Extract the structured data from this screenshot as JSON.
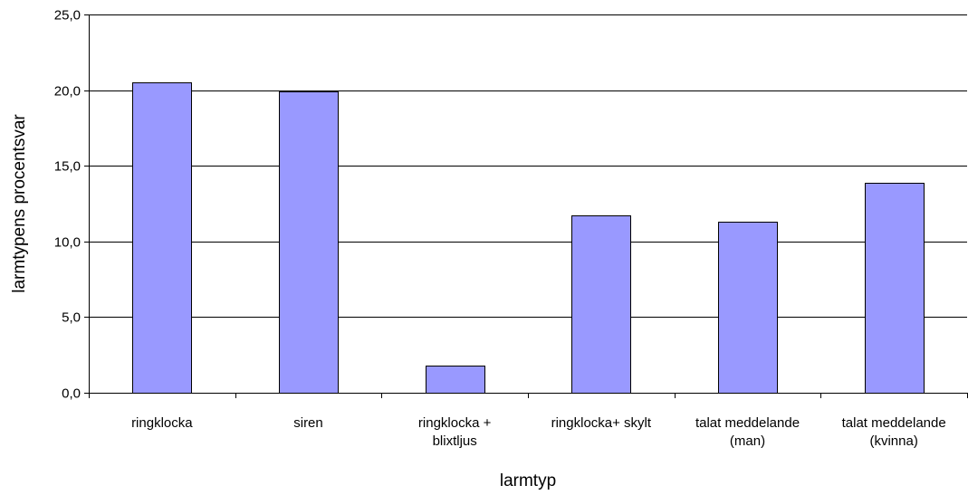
{
  "chart_data": {
    "type": "bar",
    "categories": [
      [
        "ringklocka"
      ],
      [
        "siren"
      ],
      [
        "ringklocka +",
        "blixtljus"
      ],
      [
        "ringklocka+ skylt"
      ],
      [
        "talat meddelande",
        "(man)"
      ],
      [
        "talat meddelande",
        "(kvinna)"
      ]
    ],
    "values": [
      20.5,
      19.9,
      1.8,
      11.7,
      11.3,
      13.9
    ],
    "xlabel": "larmtyp",
    "ylabel": "larmtypens procentsvar",
    "ylim": [
      0,
      25
    ],
    "yticks": [
      "0,0",
      "5,0",
      "10,0",
      "15,0",
      "20,0",
      "25,0"
    ],
    "ytick_values": [
      0,
      5,
      10,
      15,
      20,
      25
    ],
    "grid": true,
    "legend": "none",
    "colors": {
      "bar_fill": "#9999ff",
      "bar_stroke": "#000000",
      "grid": "#000000",
      "axis": "#000000"
    }
  }
}
